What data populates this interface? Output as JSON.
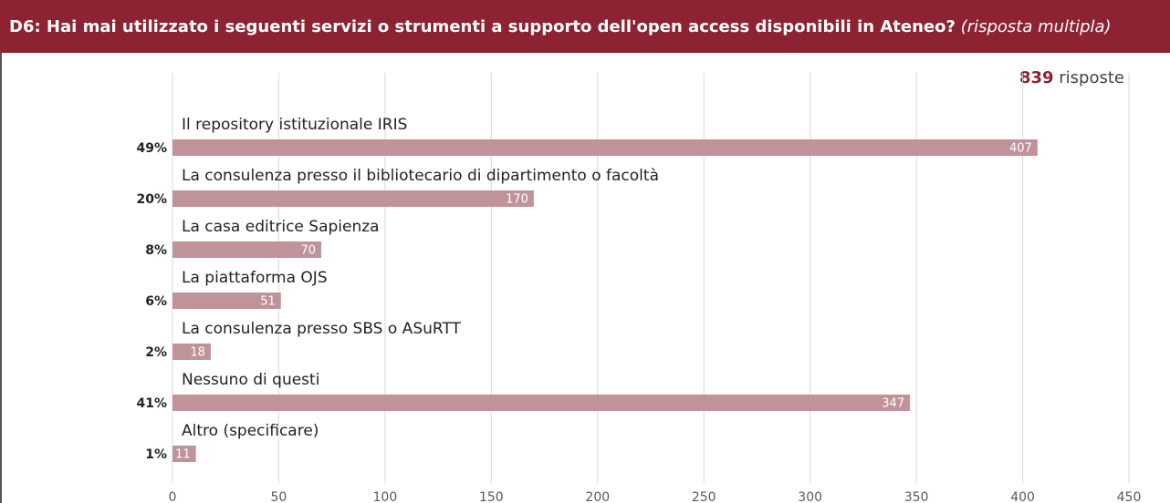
{
  "chart_data": {
    "type": "bar",
    "orientation": "horizontal",
    "title": "D6: Hai mai utilizzato i seguenti servizi o strumenti a supporto dell'open access disponibili in Ateneo?",
    "subtitle": "(risposta multipla)",
    "annotation": {
      "count": "839",
      "text": "risposte"
    },
    "categories": [
      "Il repository istituzionale IRIS",
      "La consulenza presso il bibliotecario di dipartimento o facoltà",
      "La casa editrice Sapienza",
      "La piattaforma OJS",
      "La consulenza presso SBS o ASuRTT",
      "Nessuno di questi",
      "Altro (specificare)"
    ],
    "values": [
      407,
      170,
      70,
      51,
      18,
      347,
      11
    ],
    "percent_labels": [
      "49%",
      "20%",
      "8%",
      "6%",
      "2%",
      "41%",
      "1%"
    ],
    "color": "#c0939a",
    "xlim": [
      0,
      450
    ],
    "xticks": [
      0,
      50,
      100,
      150,
      200,
      250,
      300,
      350,
      400,
      450
    ],
    "grid": true
  }
}
